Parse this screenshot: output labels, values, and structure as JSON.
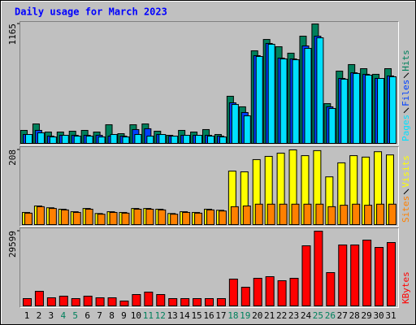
{
  "chart_data": [
    {
      "type": "bar",
      "title": "Daily usage for March 2023",
      "ylim": [
        0,
        1165
      ],
      "yticks": [
        1165
      ],
      "series": [
        {
          "name": "Hits",
          "color": "#00805c",
          "values": [
            127,
            190,
            111,
            111,
            119,
            127,
            111,
            182,
            95,
            182,
            190,
            119,
            79,
            127,
            111,
            135,
            87,
            460,
            357,
            903,
            1014,
            943,
            880,
            1046,
            1165,
            388,
            705,
            769,
            729,
            674,
            729
          ]
        },
        {
          "name": "Files",
          "color": "#0040ff",
          "values": [
            87,
            127,
            71,
            79,
            79,
            79,
            79,
            71,
            71,
            135,
            143,
            87,
            71,
            79,
            79,
            79,
            71,
            396,
            301,
            856,
            975,
            832,
            824,
            951,
            1046,
            357,
            634,
            689,
            674,
            634,
            658
          ]
        },
        {
          "name": "Pages",
          "color": "#00e0ff",
          "values": [
            87,
            103,
            63,
            79,
            71,
            71,
            63,
            87,
            63,
            87,
            71,
            87,
            71,
            79,
            79,
            71,
            63,
            380,
            269,
            848,
            967,
            824,
            816,
            927,
            1030,
            341,
            626,
            682,
            666,
            634,
            650
          ]
        }
      ]
    },
    {
      "type": "bar",
      "ylim": [
        0,
        208
      ],
      "yticks": [
        208
      ],
      "series": [
        {
          "name": "Visits",
          "color": "#ffff00",
          "values": [
            34,
            52,
            47,
            43,
            36,
            45,
            31,
            36,
            34,
            45,
            45,
            43,
            31,
            36,
            34,
            43,
            40,
            149,
            147,
            181,
            190,
            199,
            208,
            192,
            206,
            133,
            172,
            192,
            188,
            203,
            194
          ]
        },
        {
          "name": "Sites",
          "color": "#ff8000",
          "values": [
            32,
            50,
            45,
            41,
            34,
            43,
            29,
            34,
            32,
            43,
            43,
            41,
            29,
            34,
            32,
            41,
            38,
            50,
            52,
            57,
            57,
            57,
            57,
            57,
            57,
            50,
            54,
            57,
            54,
            57,
            57
          ]
        }
      ]
    },
    {
      "type": "bar",
      "ylim": [
        0,
        29599
      ],
      "yticks": [
        29599
      ],
      "categories": [
        1,
        2,
        3,
        4,
        5,
        6,
        7,
        8,
        9,
        10,
        11,
        12,
        13,
        14,
        15,
        16,
        17,
        18,
        19,
        20,
        21,
        22,
        23,
        24,
        25,
        26,
        27,
        28,
        29,
        30,
        31
      ],
      "highlight_categories": [
        4,
        5,
        11,
        12,
        18,
        19,
        25,
        26
      ],
      "highlight_color": "#00805c",
      "series": [
        {
          "name": "KBytes",
          "color": "#ff0000",
          "values": [
            2896,
            5791,
            3217,
            3861,
            2896,
            3861,
            3217,
            3217,
            1930,
            4504,
            5469,
            4504,
            2896,
            2896,
            2896,
            2896,
            2896,
            10617,
            7400,
            10939,
            11582,
            9974,
            10939,
            23808,
            29599,
            13191,
            24130,
            24130,
            26060,
            23165,
            25095
          ]
        }
      ]
    }
  ]
}
